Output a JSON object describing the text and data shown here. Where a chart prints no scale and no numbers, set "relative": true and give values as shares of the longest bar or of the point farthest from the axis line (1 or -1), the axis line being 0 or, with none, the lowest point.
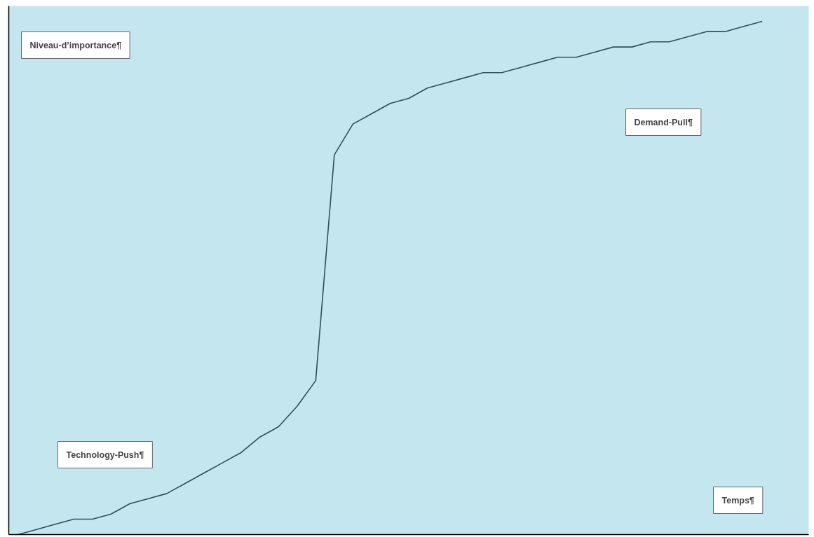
{
  "chart_data": {
    "type": "line",
    "relative": true,
    "xlabel": "Temps¶",
    "ylabel": "Niveau-d’importance¶",
    "categories": [
      null,
      null,
      null,
      null,
      null,
      null,
      null,
      null,
      null,
      null,
      null,
      null,
      null,
      null,
      null,
      null,
      null,
      null,
      null,
      null,
      null,
      null,
      null,
      null,
      null,
      null,
      null,
      null,
      null,
      null,
      null,
      null,
      null,
      null,
      null,
      null,
      null,
      null,
      null,
      null,
      null
    ],
    "series": [
      {
        "color": "#2f4f5a",
        "values": [
          0,
          0.01,
          0.02,
          0.03,
          0.03,
          0.04,
          0.06,
          0.07,
          0.08,
          0.1,
          0.12,
          0.14,
          0.16,
          0.19,
          0.21,
          0.25,
          0.3,
          0.74,
          0.8,
          0.82,
          0.84,
          0.85,
          0.87,
          0.88,
          0.89,
          0.9,
          0.9,
          0.91,
          0.92,
          0.93,
          0.93,
          0.94,
          0.95,
          0.95,
          0.96,
          0.96,
          0.97,
          0.98,
          0.98,
          0.99,
          1.0
        ]
      }
    ],
    "annotations": [
      "Technology-Push¶",
      "Demand-Pull¶"
    ],
    "marker": "none",
    "line_style": "solid"
  }
}
